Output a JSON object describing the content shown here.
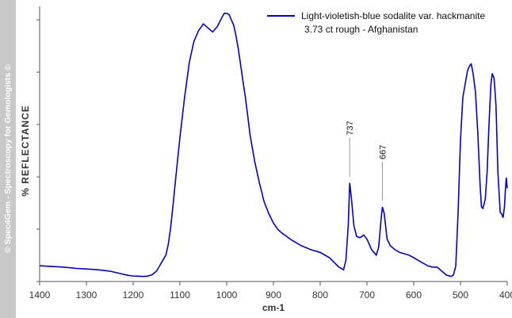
{
  "watermark": "© Spec4Gem - Spectroscopy for Gemologists ©",
  "chart_data": {
    "type": "line",
    "xlabel": "cm-1",
    "ylabel": "% REFLECTANCE",
    "xlim": [
      1400,
      400
    ],
    "x_reversed": true,
    "ylim": [
      0,
      100
    ],
    "y_tick_labels_shown": false,
    "x_ticks": [
      "1400",
      "1300",
      "1200",
      "1100",
      "1000",
      "900",
      "800",
      "700",
      "600",
      "500",
      "400"
    ],
    "legend": {
      "line1": "Light-violetish-blue sodalite var. hackmanite",
      "line2": "3.73 ct rough - Afghanistan",
      "placement": "top-right"
    },
    "annotations": [
      {
        "label": "737",
        "x": 737
      },
      {
        "label": "667",
        "x": 667
      }
    ],
    "series": [
      {
        "color": "#0000cc",
        "x": [
          1400,
          1380,
          1350,
          1320,
          1300,
          1280,
          1250,
          1230,
          1210,
          1200,
          1190,
          1180,
          1170,
          1160,
          1150,
          1140,
          1130,
          1125,
          1120,
          1115,
          1110,
          1100,
          1090,
          1080,
          1070,
          1060,
          1050,
          1040,
          1030,
          1020,
          1010,
          1005,
          1000,
          995,
          990,
          985,
          980,
          975,
          970,
          965,
          960,
          955,
          950,
          940,
          930,
          920,
          910,
          900,
          890,
          880,
          860,
          840,
          820,
          800,
          780,
          760,
          750,
          745,
          740,
          737,
          733,
          728,
          722,
          715,
          707,
          700,
          690,
          680,
          675,
          670,
          667,
          663,
          657,
          650,
          640,
          630,
          620,
          610,
          600,
          590,
          580,
          570,
          560,
          550,
          540,
          530,
          520,
          515,
          510,
          505,
          500,
          495,
          490,
          485,
          480,
          477,
          473,
          468,
          463,
          458,
          455,
          452,
          447,
          443,
          439,
          435,
          432,
          428,
          424,
          420,
          415,
          412,
          409,
          406,
          404,
          402,
          400
        ],
        "y": [
          5.0,
          4.8,
          4.5,
          4.0,
          3.8,
          3.6,
          3.0,
          2.2,
          1.4,
          1.2,
          1.1,
          1.0,
          1.1,
          1.6,
          3.0,
          6.0,
          9.0,
          13.0,
          19.0,
          27.0,
          36.0,
          53.0,
          68.0,
          81.0,
          89.0,
          93.0,
          95.5,
          94.0,
          92.5,
          94.5,
          98.0,
          99.5,
          99.5,
          99.0,
          97.0,
          95.0,
          91.0,
          86.0,
          80.0,
          74.0,
          68.0,
          61.0,
          54.0,
          44.0,
          36.0,
          29.0,
          24.5,
          21.0,
          18.5,
          17.0,
          14.5,
          12.5,
          11.0,
          10.0,
          8.0,
          4.5,
          3.5,
          7.0,
          20.0,
          36.0,
          30.0,
          20.0,
          16.0,
          15.5,
          16.5,
          15.0,
          11.0,
          9.0,
          12.0,
          22.0,
          27.0,
          24.5,
          15.0,
          12.5,
          11.0,
          10.0,
          9.5,
          9.0,
          8.0,
          7.0,
          6.0,
          5.0,
          4.5,
          4.5,
          3.0,
          1.5,
          1.0,
          1.5,
          5.0,
          25.0,
          52.0,
          68.0,
          73.0,
          78.0,
          80.0,
          80.5,
          77.0,
          70.0,
          55.0,
          35.0,
          27.0,
          26.5,
          30.0,
          40.0,
          58.0,
          73.0,
          77.0,
          75.0,
          65.0,
          40.0,
          25.0,
          24.5,
          23.0,
          27.0,
          33.0,
          38.0,
          34.0
        ]
      }
    ]
  }
}
